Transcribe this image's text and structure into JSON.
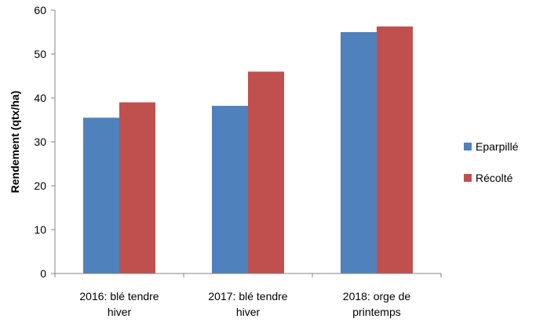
{
  "chart_data": {
    "type": "bar",
    "title": "",
    "xlabel": "",
    "ylabel": "Rendement (qtx/ha)",
    "ylim": [
      0,
      60
    ],
    "yticks": [
      0,
      10,
      20,
      30,
      40,
      50,
      60
    ],
    "categories": [
      [
        "2016: blé tendre",
        "hiver"
      ],
      [
        "2017: blé tendre",
        "hiver"
      ],
      [
        "2018: orge de",
        "printemps"
      ]
    ],
    "series": [
      {
        "name": "Eparpillé",
        "color": "#4F81BD",
        "values": [
          35.5,
          38.2,
          55.0
        ]
      },
      {
        "name": "Récolté",
        "color": "#C0504D",
        "values": [
          39.0,
          46.0,
          56.3
        ]
      }
    ],
    "grid": false,
    "legend": "right"
  }
}
